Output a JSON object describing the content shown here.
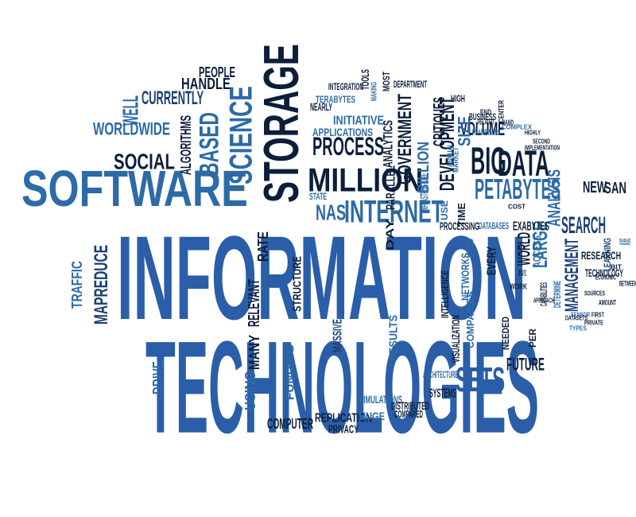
{
  "title": "Information technologies word cloud",
  "words": [
    {
      "text": "INFORMATION",
      "color": "#2a5ea8"
    },
    {
      "text": "TECHNOLOGIES",
      "color": "#2a5ea8"
    },
    {
      "text": "SOFTWARE",
      "color": "#2d6aa8"
    },
    {
      "text": "STORAGE",
      "color": "#0c1e3a"
    },
    {
      "text": "PROCESS",
      "color": "#0c1e3a"
    },
    {
      "text": "MILLION",
      "color": "#0c1e3a"
    },
    {
      "text": "INTERNET",
      "color": "#2c6aa6"
    },
    {
      "text": "NAS",
      "color": "#2c6aa6"
    },
    {
      "text": "BIG",
      "color": "#0c1e3a"
    },
    {
      "text": "DATA",
      "color": "#0c1e3a"
    },
    {
      "text": "PETABYTES",
      "color": "#2c6aa6"
    },
    {
      "text": "SETS",
      "color": "#2a5ea8"
    },
    {
      "text": "FUTURE",
      "color": "#0c1e3a"
    },
    {
      "text": "SEARCH",
      "color": "#1a3f72"
    },
    {
      "text": "LARGE",
      "color": "#2c6aa6"
    },
    {
      "text": "MANAGEMENT",
      "color": "#1a3f72"
    },
    {
      "text": "ANALYSIS",
      "color": "#2c6aa6"
    },
    {
      "text": "NEW",
      "color": "#0c1e3a"
    },
    {
      "text": "SAN",
      "color": "#0c1e3a"
    },
    {
      "text": "RESEARCH",
      "color": "#0c1e3a"
    },
    {
      "text": "TECHNOLOGY",
      "color": "#0c1e3a"
    },
    {
      "text": "LEARNING",
      "color": "#1a3f72"
    },
    {
      "text": "SCIENCE",
      "color": "#2c6aa6"
    },
    {
      "text": "BASED",
      "color": "#2c6aa6"
    },
    {
      "text": "ALGORITHMS",
      "color": "#0c1e3a"
    },
    {
      "text": "SOCIAL",
      "color": "#0c1e3a"
    },
    {
      "text": "WORLDWIDE",
      "color": "#2c6aa6"
    },
    {
      "text": "WELL",
      "color": "#2c6aa6"
    },
    {
      "text": "CURRENTLY",
      "color": "#1a3f72"
    },
    {
      "text": "HANDLE",
      "color": "#0c1e3a"
    },
    {
      "text": "PEOPLE",
      "color": "#0c1e3a"
    },
    {
      "text": "TRAFFIC",
      "color": "#2c6aa6"
    },
    {
      "text": "MAPREDUCE",
      "color": "#1a3f72"
    },
    {
      "text": "DRIVE",
      "color": "#2c6aa6"
    },
    {
      "text": "USING",
      "color": "#2c6aa6"
    },
    {
      "text": "MANY",
      "color": "#0c1e3a"
    },
    {
      "text": "RELEVANT",
      "color": "#0c1e3a"
    },
    {
      "text": "RATE",
      "color": "#0c1e3a"
    },
    {
      "text": "STRUCTURE",
      "color": "#0c1e3a"
    },
    {
      "text": "MASSIVE",
      "color": "#1a3f72"
    },
    {
      "text": "FUNDING",
      "color": "#2c6aa6"
    },
    {
      "text": "COMPUTER",
      "color": "#0c1e3a"
    },
    {
      "text": "REPLICATION",
      "color": "#0c1e3a"
    },
    {
      "text": "PRIVACY",
      "color": "#0c1e3a"
    },
    {
      "text": "HUGE",
      "color": "#2c6aa6"
    },
    {
      "text": "SIMULATIONS",
      "color": "#2c6aa6"
    },
    {
      "text": "DISTRIBUTED",
      "color": "#0c1e3a"
    },
    {
      "text": "COMPARED",
      "color": "#0c1e3a"
    },
    {
      "text": "SYSTEMS",
      "color": "#0c1e3a"
    },
    {
      "text": "ARCHITECTURE",
      "color": "#2c6aa6"
    },
    {
      "text": "RESULTS",
      "color": "#2c6aa6"
    },
    {
      "text": "VISUALIZATION",
      "color": "#0c1e3a"
    },
    {
      "text": "COMPANIES",
      "color": "#2c6aa6"
    },
    {
      "text": "INTELLIGENCE",
      "color": "#0c1e3a"
    },
    {
      "text": "NETWORKS",
      "color": "#2c6aa6"
    },
    {
      "text": "USES",
      "color": "#2c6aa6"
    },
    {
      "text": "EVERY",
      "color": "#0c1e3a"
    },
    {
      "text": "DAY",
      "color": "#0c1e3a"
    },
    {
      "text": "USE",
      "color": "#2c6aa6"
    },
    {
      "text": "TIME",
      "color": "#0c1e3a"
    },
    {
      "text": "PROCESSING",
      "color": "#0c1e3a"
    },
    {
      "text": "DATABASES",
      "color": "#2c6aa6"
    },
    {
      "text": "EXABYTES",
      "color": "#0c1e3a"
    },
    {
      "text": "WORLD",
      "color": "#0c1e3a"
    },
    {
      "text": "ACCESS",
      "color": "#2c6aa6"
    },
    {
      "text": "NEEDED",
      "color": "#0c1e3a"
    },
    {
      "text": "PER",
      "color": "#0c1e3a"
    },
    {
      "text": "VOLUME",
      "color": "#0c1e3a"
    },
    {
      "text": "SIZE",
      "color": "#2c6aa6"
    },
    {
      "text": "DEVELOPMENT",
      "color": "#0c1e3a"
    },
    {
      "text": "GOVERNMENT",
      "color": "#0c1e3a"
    },
    {
      "text": "BILLION",
      "color": "#2c6aa6"
    },
    {
      "text": "INFRASTRUCTURE",
      "color": "#2c6aa6"
    },
    {
      "text": "CRITIQUES",
      "color": "#0c1e3a"
    },
    {
      "text": "ANALYTICS",
      "color": "#0c1e3a"
    },
    {
      "text": "PARALLEL",
      "color": "#0c1e3a"
    },
    {
      "text": "INITIATIVE",
      "color": "#2c6aa6"
    },
    {
      "text": "APPLICATIONS",
      "color": "#2c6aa6"
    },
    {
      "text": "NEARLY",
      "color": "#0c1e3a"
    },
    {
      "text": "TERABYTES",
      "color": "#2c6aa6"
    },
    {
      "text": "INTEGRATION",
      "color": "#0c1e3a"
    },
    {
      "text": "TOOLS",
      "color": "#0c1e3a"
    },
    {
      "text": "MAKING",
      "color": "#2c6aa6"
    },
    {
      "text": "MOST",
      "color": "#0c1e3a"
    },
    {
      "text": "DEPARTMENT",
      "color": "#0c1e3a"
    },
    {
      "text": "STATE",
      "color": "#2c6aa6"
    },
    {
      "text": "HIGH",
      "color": "#0c1e3a"
    },
    {
      "text": "BUSINESS",
      "color": "#0c1e3a"
    },
    {
      "text": "FRAMEWORK",
      "color": "#2c6aa6"
    },
    {
      "text": "ANNUAL",
      "color": "#2c6aa6"
    },
    {
      "text": "MARKET",
      "color": "#2c6aa6"
    },
    {
      "text": "RELATED",
      "color": "#0c1e3a"
    },
    {
      "text": "END",
      "color": "#0c1e3a"
    },
    {
      "text": "CENTER",
      "color": "#0c1e3a"
    },
    {
      "text": "HAND",
      "color": "#0c1e3a"
    },
    {
      "text": "COMPLEX",
      "color": "#2c6aa6"
    },
    {
      "text": "IMPLEMENTATION",
      "color": "#0c1e3a"
    },
    {
      "text": "HIGHLY",
      "color": "#0c1e3a"
    },
    {
      "text": "SECOND",
      "color": "#0c1e3a"
    },
    {
      "text": "WORK",
      "color": "#0c1e3a"
    },
    {
      "text": "DEFINITION",
      "color": "#0c1e3a"
    },
    {
      "text": "COST",
      "color": "#0c1e3a"
    },
    {
      "text": "ECONOMIC",
      "color": "#0c1e3a"
    },
    {
      "text": "SENSOR",
      "color": "#2c6aa6"
    },
    {
      "text": "AMOUNT",
      "color": "#0c1e3a"
    },
    {
      "text": "BETWEEN",
      "color": "#0c1e3a"
    },
    {
      "text": "MACHINE",
      "color": "#2c6aa6"
    },
    {
      "text": "BIT",
      "color": "#0c1e3a"
    },
    {
      "text": "DETERMINE",
      "color": "#2c6aa6"
    },
    {
      "text": "CAPABILITIES",
      "color": "#0c1e3a"
    },
    {
      "text": "APPROACH",
      "color": "#0c1e3a"
    },
    {
      "text": "SOURCES",
      "color": "#0c1e3a"
    },
    {
      "text": "PRIVATE",
      "color": "#0c1e3a"
    },
    {
      "text": "DATASETS",
      "color": "#0c1e3a"
    },
    {
      "text": "TYPES",
      "color": "#2c6aa6"
    },
    {
      "text": "FIRST",
      "color": "#0c1e3a"
    }
  ]
}
